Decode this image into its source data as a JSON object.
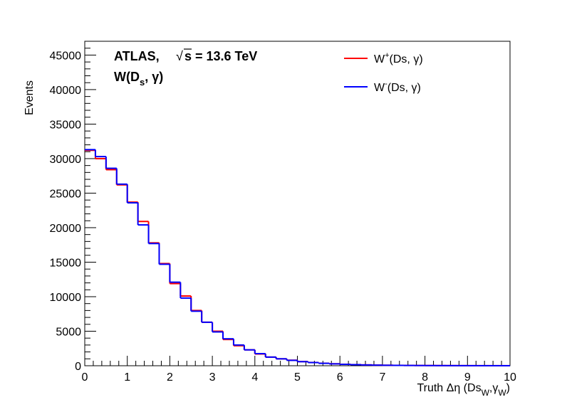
{
  "chart_data": {
    "type": "line",
    "style": "histogram-step",
    "xlabel": "Truth Δη (Ds_W,γ_W)",
    "ylabel": "Events",
    "xlim": [
      0,
      10
    ],
    "ylim": [
      0,
      47000
    ],
    "x_ticks": [
      "0",
      "1",
      "2",
      "3",
      "4",
      "5",
      "6",
      "7",
      "8",
      "9",
      "10"
    ],
    "y_ticks": [
      "0",
      "5000",
      "10000",
      "15000",
      "20000",
      "25000",
      "30000",
      "35000",
      "40000",
      "45000"
    ],
    "annotations": {
      "atlas": "ATLAS,",
      "sqrt_s": "s = 13.6 TeV",
      "process": "W(Ds, γ)"
    },
    "bin_width": 0.25,
    "series": [
      {
        "name": "W+(Ds, γ)",
        "color": "#ff0000",
        "values": [
          31200,
          30000,
          28400,
          26200,
          23700,
          20900,
          17800,
          14800,
          11900,
          10100,
          8000,
          6300,
          5000,
          3800,
          2900,
          2300,
          1700,
          1250,
          1000,
          800,
          600,
          470,
          360,
          280,
          210,
          160,
          120,
          90,
          70,
          55,
          45,
          35,
          28,
          22,
          18,
          14,
          11,
          9,
          7,
          5
        ]
      },
      {
        "name": "W-(Ds, γ)",
        "color": "#0000ff",
        "values": [
          31300,
          30300,
          28600,
          26300,
          23600,
          20400,
          17700,
          14700,
          12100,
          9800,
          7900,
          6300,
          4900,
          3900,
          3000,
          2300,
          1750,
          1250,
          1000,
          780,
          590,
          460,
          350,
          270,
          200,
          155,
          115,
          85,
          65,
          50,
          40,
          32,
          25,
          20,
          16,
          13,
          10,
          8,
          6,
          5
        ]
      }
    ],
    "legend": {
      "position": "top-right",
      "items": [
        {
          "base": "W",
          "sup": "+",
          "rest": "(Ds, γ)",
          "color": "#ff0000"
        },
        {
          "base": "W",
          "sup": "-",
          "rest": "(Ds, γ)",
          "color": "#0000ff"
        }
      ]
    }
  }
}
